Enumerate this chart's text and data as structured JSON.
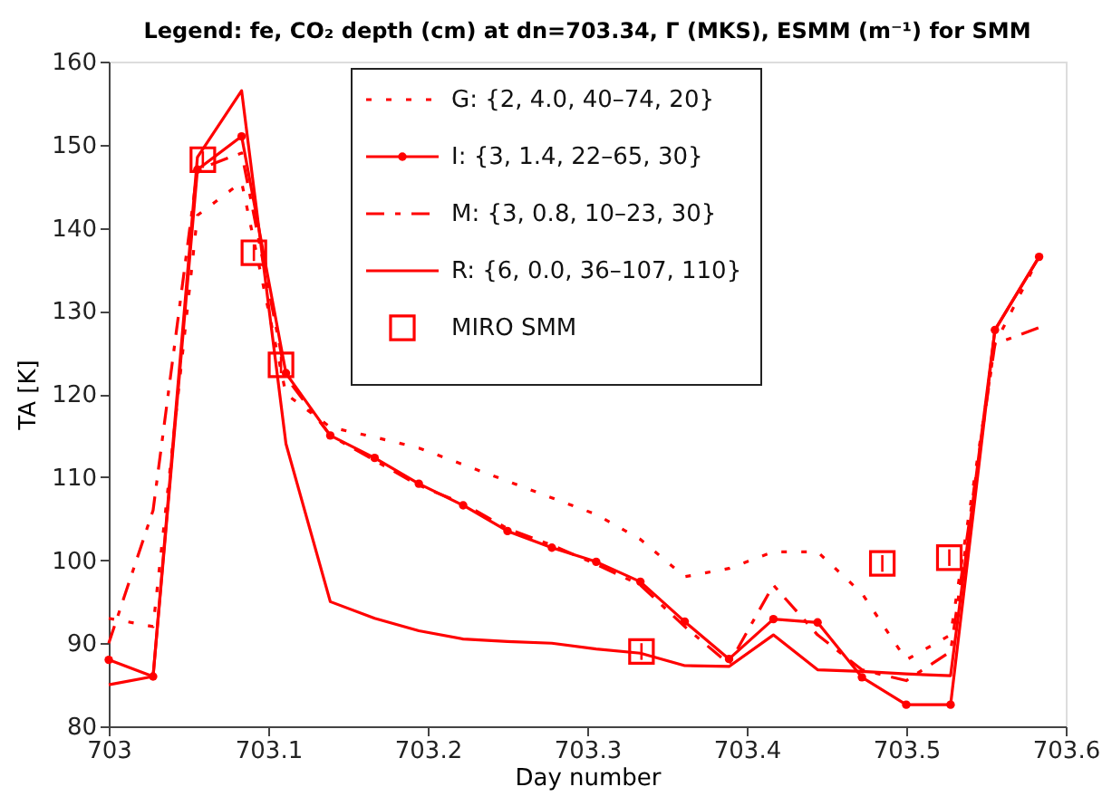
{
  "chart_data": {
    "type": "line",
    "title": "Legend: fe, CO₂ depth (cm) at dn=703.34, Γ (MKS), ESMM (m⁻¹) for SMM",
    "xlabel": "Day number",
    "ylabel": "TA [K]",
    "x": [
      703.0,
      703.0278,
      703.0556,
      703.0833,
      703.1111,
      703.1389,
      703.1667,
      703.1944,
      703.2222,
      703.25,
      703.2778,
      703.3056,
      703.3333,
      703.3611,
      703.3889,
      703.4167,
      703.4444,
      703.4722,
      703.5,
      703.5278,
      703.5556,
      703.5833
    ],
    "series": [
      {
        "name": "G: {2, 4.0, 40–74, 20}",
        "color": "#ff0000",
        "line_style": "dotted",
        "marker": "none",
        "values": [
          93,
          92,
          141.5,
          145.5,
          120,
          116,
          114.8,
          113.5,
          111.5,
          109.5,
          107.5,
          105.5,
          102.5,
          98,
          99,
          101,
          101,
          96,
          88,
          91,
          126,
          136.5
        ]
      },
      {
        "name": "I: {3, 1.4, 22–65, 30}",
        "color": "#ff0000",
        "line_style": "solid",
        "marker": "circle",
        "values": [
          88,
          86,
          147,
          151,
          122.5,
          115,
          112.3,
          109.2,
          106.6,
          103.5,
          101.5,
          99.8,
          97.4,
          92.6,
          88.1,
          92.9,
          92.5,
          85.9,
          82.6,
          82.6,
          127.7,
          136.5
        ]
      },
      {
        "name": "M: {3, 0.8, 10–23, 30}",
        "color": "#ff0000",
        "line_style": "dashed",
        "marker": "none",
        "values": [
          90,
          106,
          147,
          149,
          122,
          115,
          112,
          109,
          106.8,
          103.8,
          101.8,
          99.5,
          97,
          92,
          87.5,
          97,
          91,
          86.8,
          85.5,
          89,
          126,
          128
        ]
      },
      {
        "name": "R: {6, 0.0, 36–107, 110}",
        "color": "#ff0000",
        "line_style": "solid",
        "marker": "none",
        "values": [
          85,
          86,
          148.5,
          156.5,
          114,
          95,
          93,
          91.5,
          90.5,
          90.2,
          90,
          89.3,
          88.8,
          87.3,
          87.2,
          91,
          86.8,
          86.6,
          86.3,
          86.1,
          127.7,
          136.5
        ]
      },
      {
        "name": "MIRO SMM",
        "type": "scatter",
        "color": "#ff0000",
        "marker": "square",
        "x": [
          703.059,
          703.091,
          703.108,
          703.334,
          703.485,
          703.527
        ],
        "values": [
          148.2,
          137,
          123.5,
          89,
          99.6,
          100.3
        ],
        "errors": [
          1,
          1,
          1,
          1,
          1,
          1
        ]
      }
    ],
    "xlim": [
      703,
      703.6
    ],
    "xticks": [
      703,
      703.1,
      703.2,
      703.3,
      703.4,
      703.5,
      {
        "value": 703.6,
        "label": "703.6"
      }
    ],
    "ylim": [
      80,
      160
    ],
    "yticks": [
      80,
      90,
      100,
      110,
      120,
      130,
      140,
      150,
      160
    ],
    "grid": false,
    "legend": "top"
  }
}
